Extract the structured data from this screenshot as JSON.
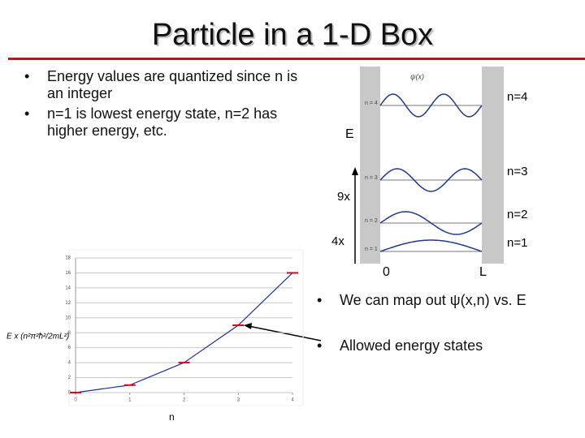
{
  "title": "Particle in a 1-D Box",
  "bullets": [
    "Energy values are quantized since n is an integer",
    "n=1 is lowest energy state, n=2 has higher energy, etc."
  ],
  "bullets2": [
    "We can map out ψ(x,n) vs. E",
    "Allowed energy states"
  ],
  "diagram": {
    "psi_label": "ψ(x)",
    "axis_label": "E",
    "levels": [
      {
        "label": "n=4",
        "small": "n = 4"
      },
      {
        "label": "n=3",
        "small": "n = 3"
      },
      {
        "label": "n=2",
        "small": "n = 2"
      },
      {
        "label": "n=1",
        "small": "n = 1"
      }
    ],
    "ratio_labels": [
      "9x",
      "4x"
    ],
    "x_labels": [
      "0",
      "L"
    ]
  },
  "chart_data": {
    "type": "line",
    "x_label": "n",
    "y_label": "E x (n²π²ħ²/2mL²)",
    "x": [
      0,
      1,
      2,
      3,
      4
    ],
    "values": [
      0,
      1,
      4,
      9,
      16
    ],
    "color": "#1f2f9a",
    "marker_color": "#e0001b",
    "xlim": [
      0,
      4
    ],
    "xticks": [
      0,
      1,
      2,
      3,
      4
    ],
    "ylim": [
      0,
      18
    ],
    "yticks": [
      0,
      2,
      4,
      6,
      8,
      10,
      12,
      14,
      16,
      18
    ],
    "grid": true
  }
}
